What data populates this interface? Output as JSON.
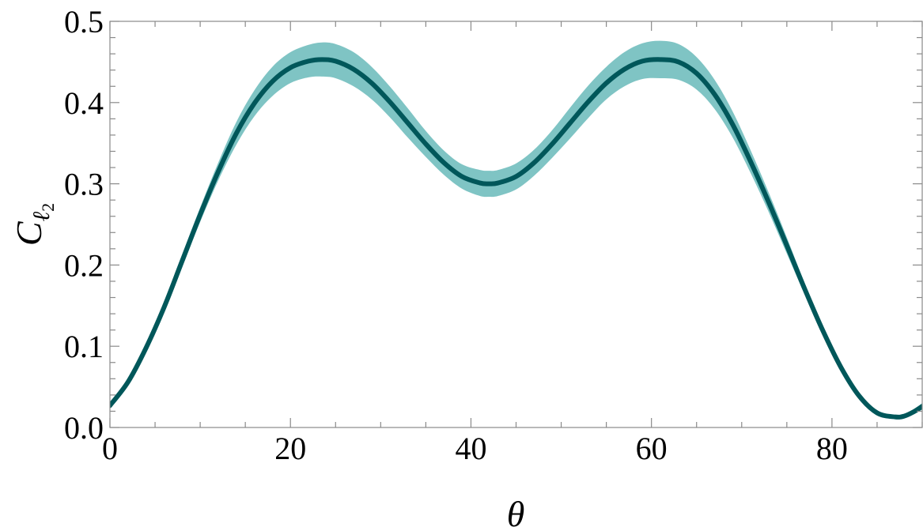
{
  "chart_data": {
    "type": "line",
    "title": "",
    "xlabel": "θ",
    "ylabel": {
      "main": "C",
      "sub": "ℓ",
      "subsub": "2"
    },
    "xlim": [
      0,
      90
    ],
    "ylim": [
      0,
      0.5
    ],
    "xticks": [
      0,
      20,
      40,
      60,
      80
    ],
    "xtick_labels": [
      "0",
      "20",
      "40",
      "60",
      "80"
    ],
    "yticks": [
      0.0,
      0.1,
      0.2,
      0.3,
      0.4,
      0.5
    ],
    "ytick_labels": [
      "0.0",
      "0.1",
      "0.2",
      "0.3",
      "0.4",
      "0.5"
    ],
    "grid": false,
    "colors": {
      "line": "#00575a",
      "band": "#7fc4c4"
    },
    "series": [
      {
        "x": [
          0,
          2,
          4,
          6,
          8,
          10,
          12,
          14,
          16,
          18,
          20,
          22,
          23.5,
          25,
          27,
          29,
          31,
          33,
          35,
          37,
          39,
          41,
          42,
          43,
          45,
          47,
          49,
          51,
          53,
          55,
          57,
          59,
          61,
          63,
          65,
          67,
          69,
          71,
          73,
          75,
          77,
          79,
          81,
          83,
          85,
          87,
          88,
          89,
          90
        ],
        "y": [
          0.027,
          0.056,
          0.098,
          0.148,
          0.205,
          0.262,
          0.315,
          0.362,
          0.399,
          0.426,
          0.443,
          0.451,
          0.453,
          0.451,
          0.441,
          0.424,
          0.401,
          0.375,
          0.349,
          0.326,
          0.309,
          0.301,
          0.3,
          0.301,
          0.309,
          0.326,
          0.349,
          0.375,
          0.401,
          0.424,
          0.441,
          0.451,
          0.453,
          0.45,
          0.436,
          0.41,
          0.373,
          0.327,
          0.277,
          0.224,
          0.17,
          0.119,
          0.074,
          0.039,
          0.018,
          0.013,
          0.014,
          0.019,
          0.026
        ],
        "y_upper": [
          0.031,
          0.06,
          0.103,
          0.155,
          0.213,
          0.271,
          0.326,
          0.376,
          0.415,
          0.444,
          0.462,
          0.471,
          0.474,
          0.472,
          0.462,
          0.444,
          0.42,
          0.393,
          0.365,
          0.341,
          0.324,
          0.317,
          0.316,
          0.317,
          0.325,
          0.342,
          0.366,
          0.394,
          0.421,
          0.444,
          0.462,
          0.473,
          0.476,
          0.472,
          0.456,
          0.428,
          0.389,
          0.341,
          0.289,
          0.234,
          0.177,
          0.124,
          0.077,
          0.041,
          0.02,
          0.015,
          0.016,
          0.022,
          0.03
        ],
        "y_lower": [
          0.023,
          0.052,
          0.093,
          0.141,
          0.197,
          0.253,
          0.304,
          0.348,
          0.383,
          0.408,
          0.424,
          0.431,
          0.432,
          0.43,
          0.42,
          0.404,
          0.382,
          0.357,
          0.333,
          0.311,
          0.294,
          0.285,
          0.284,
          0.285,
          0.293,
          0.31,
          0.332,
          0.356,
          0.381,
          0.404,
          0.42,
          0.429,
          0.43,
          0.428,
          0.416,
          0.392,
          0.357,
          0.313,
          0.265,
          0.214,
          0.163,
          0.114,
          0.071,
          0.037,
          0.016,
          0.011,
          0.012,
          0.016,
          0.022
        ]
      }
    ]
  }
}
